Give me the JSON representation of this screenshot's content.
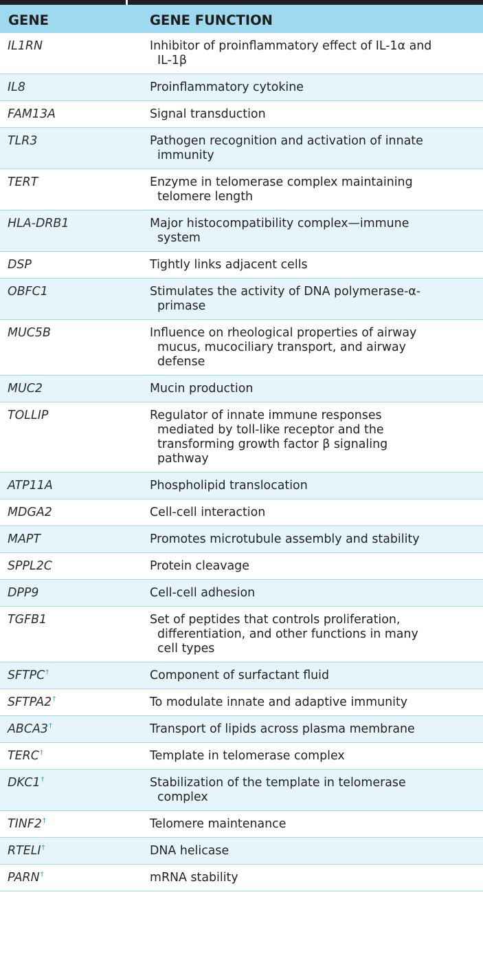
{
  "header": {
    "col_gene": "GENE",
    "col_function": "GENE FUNCTION"
  },
  "rows": [
    {
      "gene": "IL1RN",
      "dagger": "",
      "function": [
        "Inhibitor of proinflammatory effect of IL-1α and",
        "IL-1β"
      ]
    },
    {
      "gene": "IL8",
      "dagger": "",
      "function": [
        "Proinflammatory cytokine"
      ]
    },
    {
      "gene": "FAM13A",
      "dagger": "",
      "function": [
        "Signal transduction"
      ]
    },
    {
      "gene": "TLR3",
      "dagger": "",
      "function": [
        "Pathogen recognition and activation of innate",
        "immunity"
      ]
    },
    {
      "gene": "TERT",
      "dagger": "",
      "function": [
        "Enzyme in telomerase complex maintaining",
        "telomere length"
      ]
    },
    {
      "gene": "HLA-DRB1",
      "dagger": "",
      "function": [
        "Major histocompatibility complex—immune",
        "system"
      ]
    },
    {
      "gene": "DSP",
      "dagger": "",
      "function": [
        "Tightly links adjacent cells"
      ]
    },
    {
      "gene": "OBFC1",
      "dagger": "",
      "function": [
        "Stimulates the activity of DNA polymerase-α-",
        "primase"
      ]
    },
    {
      "gene": "MUC5B",
      "dagger": "",
      "function": [
        "Influence on rheological properties of airway",
        "mucus, mucociliary transport, and airway",
        "defense"
      ]
    },
    {
      "gene": "MUC2",
      "dagger": "",
      "function": [
        "Mucin production"
      ]
    },
    {
      "gene": "TOLLIP",
      "dagger": "",
      "function": [
        "Regulator of innate immune responses",
        "mediated by toll-like receptor and the",
        "transforming growth factor β signaling",
        "pathway"
      ]
    },
    {
      "gene": "ATP11A",
      "dagger": "",
      "function": [
        "Phospholipid translocation"
      ]
    },
    {
      "gene": "MDGA2",
      "dagger": "",
      "function": [
        "Cell-cell interaction"
      ]
    },
    {
      "gene": "MAPT",
      "dagger": "",
      "function": [
        "Promotes microtubule assembly and stability"
      ]
    },
    {
      "gene": "SPPL2C",
      "dagger": "",
      "function": [
        "Protein cleavage"
      ]
    },
    {
      "gene": "DPP9",
      "dagger": "",
      "function": [
        "Cell-cell adhesion"
      ]
    },
    {
      "gene": "TGFB1",
      "dagger": "",
      "function": [
        "Set of peptides that controls proliferation,",
        "differentiation, and other functions in many",
        "cell types"
      ]
    },
    {
      "gene": "SFTPC",
      "dagger": "†",
      "function": [
        "Component of surfactant fluid"
      ]
    },
    {
      "gene": "SFTPA2",
      "dagger": "†",
      "function": [
        "To modulate innate and adaptive immunity"
      ]
    },
    {
      "gene": "ABCA3",
      "dagger": "†",
      "function": [
        "Transport of lipids across plasma membrane"
      ]
    },
    {
      "gene": "TERC",
      "dagger": "†",
      "function": [
        "Template in telomerase complex"
      ]
    },
    {
      "gene": "DKC1",
      "dagger": "†",
      "function": [
        "Stabilization of the template in telomerase",
        "complex"
      ]
    },
    {
      "gene": "TINF2",
      "dagger": "†",
      "function": [
        "Telomere maintenance"
      ]
    },
    {
      "gene": "RTELI",
      "dagger": "†",
      "function": [
        "DNA helicase"
      ]
    },
    {
      "gene": "PARN",
      "dagger": "†",
      "function": [
        "mRNA stability"
      ]
    }
  ]
}
